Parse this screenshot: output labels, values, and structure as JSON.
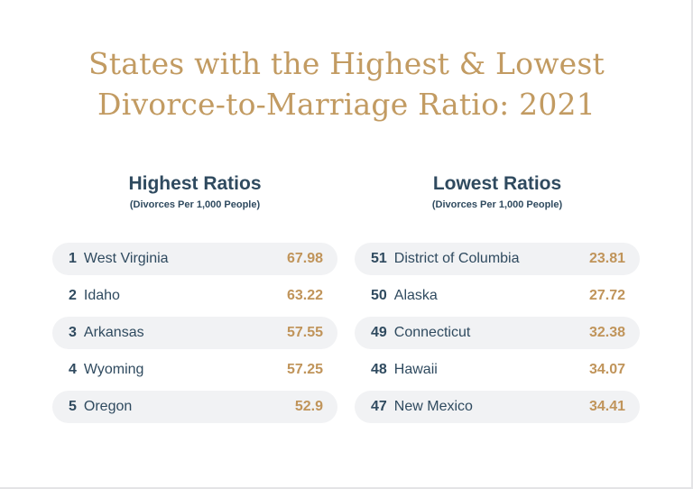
{
  "chart_data": {
    "type": "table",
    "title_line1": "States with the Highest & Lowest",
    "title_line2": "Divorce-to-Marriage Ratio: 2021",
    "colors": {
      "title": "#c29b62",
      "text": "#2f4a5f",
      "value": "#c0945a",
      "row_shade": "#f1f2f4"
    },
    "tables": [
      {
        "heading": "Highest Ratios",
        "subheading": "(Divorces Per 1,000 People)",
        "rows": [
          {
            "rank": "1",
            "state": "West Virginia",
            "value": "67.98"
          },
          {
            "rank": "2",
            "state": "Idaho",
            "value": "63.22"
          },
          {
            "rank": "3",
            "state": "Arkansas",
            "value": "57.55"
          },
          {
            "rank": "4",
            "state": "Wyoming",
            "value": "57.25"
          },
          {
            "rank": "5",
            "state": "Oregon",
            "value": "52.9"
          }
        ]
      },
      {
        "heading": "Lowest Ratios",
        "subheading": "(Divorces Per 1,000 People)",
        "rows": [
          {
            "rank": "51",
            "state": "District of Columbia",
            "value": "23.81"
          },
          {
            "rank": "50",
            "state": "Alaska",
            "value": "27.72"
          },
          {
            "rank": "49",
            "state": "Connecticut",
            "value": "32.38"
          },
          {
            "rank": "48",
            "state": "Hawaii",
            "value": "34.07"
          },
          {
            "rank": "47",
            "state": "New Mexico",
            "value": "34.41"
          }
        ]
      }
    ]
  }
}
